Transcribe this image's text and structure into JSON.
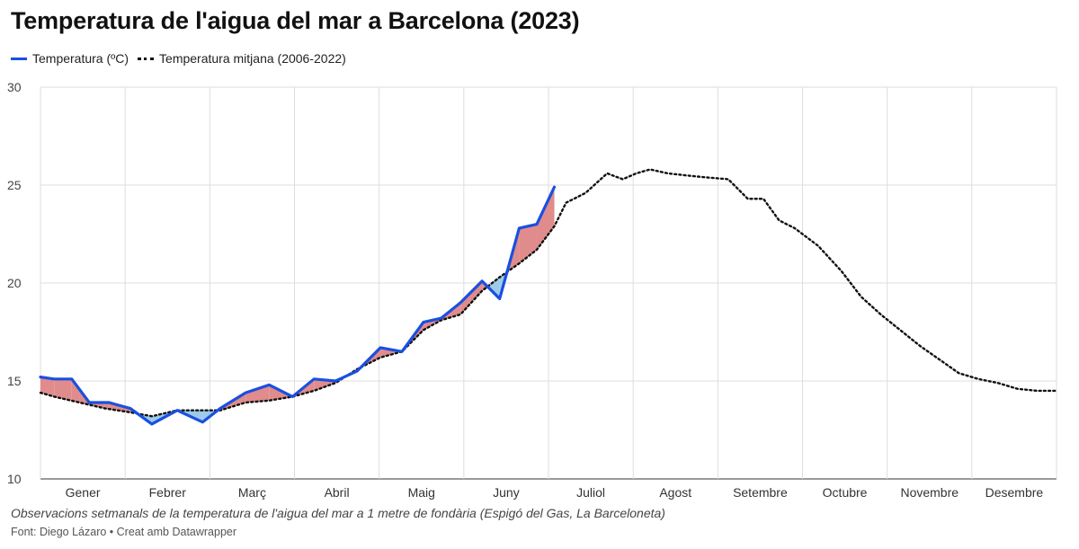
{
  "title": "Temperatura de l'aigua del mar a Barcelona (2023)",
  "notes": "Observacions setmanals de la temperatura de l'aigua del mar a 1 metre de fondària (Espigó del Gas, La Barceloneta)",
  "source": "Font: Diego Lázaro • Creat amb Datawrapper",
  "colors": {
    "actual_line": "#1a4fe0",
    "average_line": "#111111",
    "above_fill": "#e08c8c",
    "below_fill": "#9ccbea",
    "grid": "#dddddd"
  },
  "chart_data": {
    "type": "line",
    "title": "Temperatura de l'aigua del mar a Barcelona (2023)",
    "xlabel": "",
    "ylabel": "",
    "ylim": [
      10,
      30
    ],
    "yticks": [
      10,
      15,
      20,
      25,
      30
    ],
    "xlim": [
      0,
      52
    ],
    "grid": true,
    "legend_position": "top-left",
    "months": [
      "Gener",
      "Febrer",
      "Març",
      "Abril",
      "Maig",
      "Juny",
      "Juliol",
      "Agost",
      "Setembre",
      "Octubre",
      "Novembre",
      "Desembre"
    ],
    "series": [
      {
        "name": "Temperatura (ºC)",
        "style": "solid",
        "x": [
          0,
          0.7,
          1.6,
          2.5,
          3.5,
          4.6,
          5.7,
          7.0,
          8.3,
          9.2,
          10.5,
          11.7,
          12.9,
          14.0,
          15.1,
          16.2,
          17.4,
          18.5,
          19.6,
          20.5,
          21.5,
          22.6,
          23.5,
          24.5,
          25.4,
          26.3
        ],
        "values": [
          15.2,
          15.1,
          15.1,
          13.9,
          13.9,
          13.6,
          12.8,
          13.5,
          12.9,
          13.6,
          14.4,
          14.8,
          14.2,
          15.1,
          15.0,
          15.5,
          16.7,
          16.5,
          18.0,
          18.2,
          19.0,
          20.1,
          19.2,
          22.8,
          23.0,
          24.9
        ]
      },
      {
        "name": "Temperatura mitjana (2006-2022)",
        "style": "dotted",
        "x": [
          0,
          0.7,
          2.0,
          3.3,
          4.6,
          5.7,
          7.0,
          8.3,
          9.2,
          10.5,
          11.7,
          12.9,
          14.0,
          15.1,
          16.2,
          17.4,
          18.5,
          19.6,
          20.5,
          21.5,
          22.6,
          23.5,
          24.5,
          25.4,
          26.3,
          26.9,
          27.9,
          29.0,
          29.8,
          30.5,
          31.2,
          32.1,
          33.0,
          34.0,
          35.2,
          36.2,
          37.0,
          37.8,
          38.6,
          39.8,
          41.0,
          42.0,
          43.0,
          44.0,
          45.0,
          46.0,
          47.0,
          48.0,
          49.0,
          50.0,
          51.0,
          52.0
        ],
        "values": [
          14.4,
          14.2,
          13.9,
          13.6,
          13.4,
          13.2,
          13.5,
          13.5,
          13.5,
          13.9,
          14.0,
          14.2,
          14.5,
          14.9,
          15.6,
          16.2,
          16.5,
          17.6,
          18.1,
          18.4,
          19.6,
          20.3,
          21.0,
          21.7,
          22.9,
          24.1,
          24.6,
          25.6,
          25.3,
          25.6,
          25.8,
          25.6,
          25.5,
          25.4,
          25.3,
          24.3,
          24.3,
          23.2,
          22.8,
          21.9,
          20.6,
          19.3,
          18.4,
          17.6,
          16.8,
          16.1,
          15.4,
          15.1,
          14.9,
          14.6,
          14.5,
          14.5
        ]
      }
    ]
  }
}
